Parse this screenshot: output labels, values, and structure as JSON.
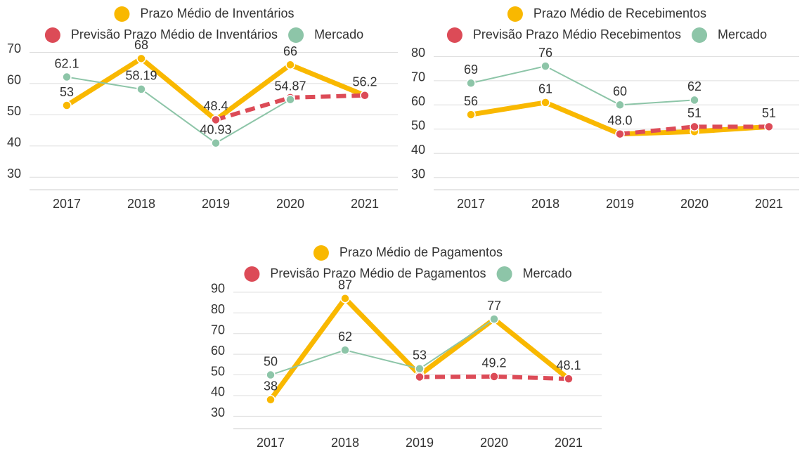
{
  "chart_data": [
    {
      "type": "line",
      "categories": [
        "2017",
        "2018",
        "2019",
        "2020",
        "2021"
      ],
      "ylim": [
        26,
        71
      ],
      "yticks": [
        30,
        40,
        50,
        60,
        70
      ],
      "grid": true,
      "series": [
        {
          "name": "Prazo Médio de Inventários",
          "color": "#f9b800",
          "values": [
            53,
            68,
            48.4,
            66,
            56.2
          ],
          "value_labels": [
            "53",
            "68",
            "48.4",
            "66",
            null
          ]
        },
        {
          "name": "Previsão Prazo Médio de Inventários",
          "color": "#dc4b57",
          "dashed": true,
          "values": [
            null,
            null,
            48.4,
            55.5,
            56.2
          ],
          "value_labels": [
            null,
            null,
            null,
            null,
            "56.2"
          ]
        },
        {
          "name": "Mercado",
          "color": "#8dc5a8",
          "values": [
            62.1,
            58.19,
            40.93,
            54.87,
            null
          ],
          "value_labels": [
            "62.1",
            "58.19",
            "40.93",
            "54.87",
            null
          ]
        }
      ]
    },
    {
      "type": "line",
      "categories": [
        "2017",
        "2018",
        "2019",
        "2020",
        "2021"
      ],
      "ylim": [
        25,
        83
      ],
      "yticks": [
        30,
        40,
        50,
        60,
        70,
        80
      ],
      "grid": true,
      "series": [
        {
          "name": "Prazo Médio de Recebimentos",
          "color": "#f9b800",
          "values": [
            56,
            61,
            48,
            49,
            51
          ],
          "value_labels": [
            "56",
            "61",
            "48.0",
            null,
            null
          ]
        },
        {
          "name": "Previsão Prazo Médio Recebimentos",
          "color": "#dc4b57",
          "dashed": true,
          "values": [
            null,
            null,
            48,
            51,
            51
          ],
          "value_labels": [
            null,
            null,
            null,
            "51",
            "51"
          ]
        },
        {
          "name": "Mercado",
          "color": "#8dc5a8",
          "values": [
            69,
            76,
            60,
            62,
            null
          ],
          "value_labels": [
            "69",
            "76",
            "60",
            "62",
            null
          ]
        }
      ]
    },
    {
      "type": "line",
      "categories": [
        "2017",
        "2018",
        "2019",
        "2020",
        "2021"
      ],
      "ylim": [
        24,
        92
      ],
      "yticks": [
        30,
        40,
        50,
        60,
        70,
        80,
        90
      ],
      "grid": true,
      "series": [
        {
          "name": "Prazo Médio de Pagamentos",
          "color": "#f9b800",
          "values": [
            38,
            87,
            50,
            77,
            48.1
          ],
          "value_labels": [
            "38",
            "87",
            null,
            null,
            null
          ]
        },
        {
          "name": "Previsão Prazo Médio de Pagamentos",
          "color": "#dc4b57",
          "dashed": true,
          "values": [
            null,
            null,
            49,
            49.2,
            48.1
          ],
          "value_labels": [
            null,
            null,
            null,
            "49.2",
            "48.1"
          ]
        },
        {
          "name": "Mercado",
          "color": "#8dc5a8",
          "values": [
            50,
            62,
            53,
            77,
            null
          ],
          "value_labels": [
            "50",
            "62",
            "53",
            "77",
            null
          ]
        }
      ]
    }
  ]
}
